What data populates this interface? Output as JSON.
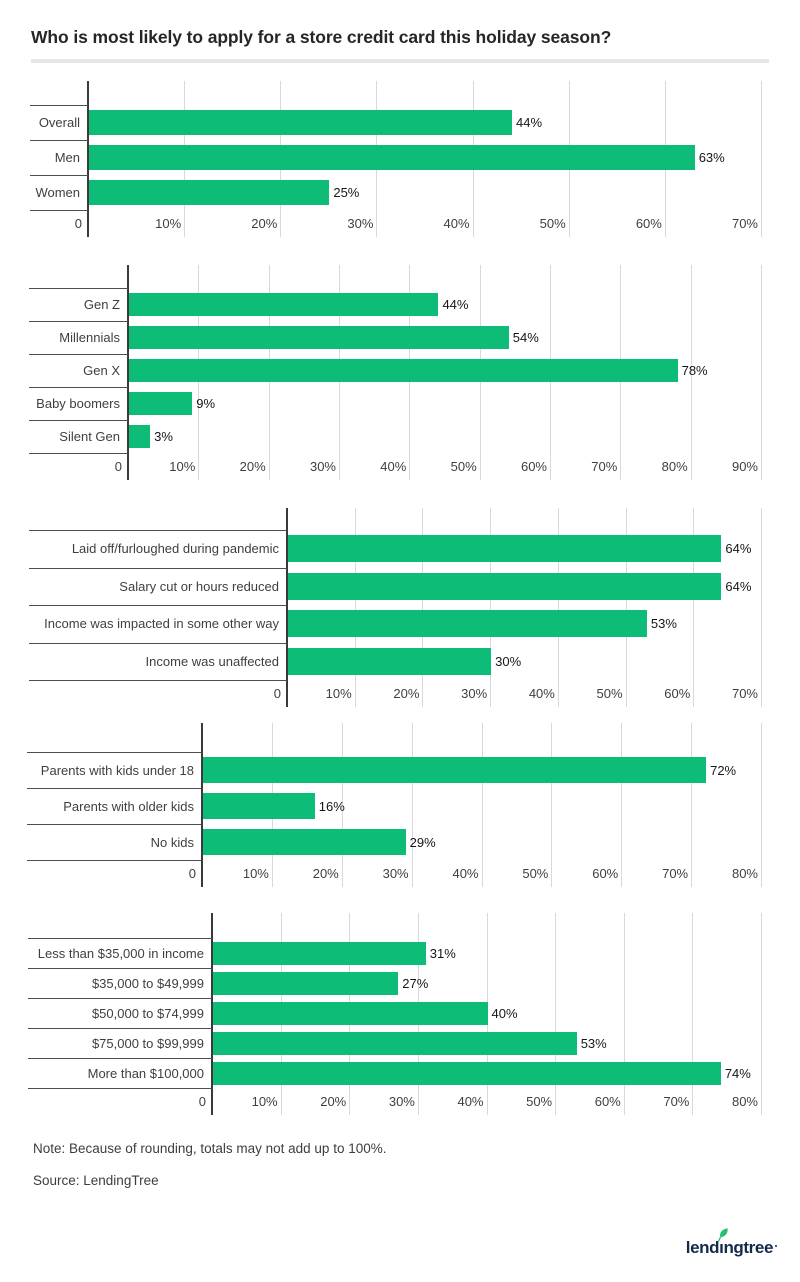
{
  "page": {
    "title": "Who is most likely to apply for a store credit card this holiday season?",
    "note": "Note: Because of rounding, totals may not add up to 100%.",
    "source": "Source: LendingTree",
    "logo": {
      "alt": "lendingtree",
      "pre": "lend",
      "i": "ı",
      "post": "ngtree"
    }
  },
  "colors": {
    "bar": "#0dbc77",
    "grid": "#d9d9d9",
    "axis": "#3a3a3a",
    "rowline": "#4f4f4f",
    "text": "#3f3f3f",
    "value": "#161616",
    "title": "#262626",
    "divider": "#e6e6e6",
    "navy": "#15294b",
    "leaf": "#25c16f"
  },
  "chart_data": [
    {
      "type": "bar",
      "id": "by-gender",
      "categories": [
        "Overall",
        "Men",
        "Women"
      ],
      "values": [
        44,
        63,
        25
      ],
      "value_labels": [
        "44%",
        "63%",
        "25%"
      ],
      "ticks": [
        "0",
        "10%",
        "20%",
        "30%",
        "40%",
        "50%",
        "60%",
        "70%"
      ],
      "xlim": [
        0,
        70
      ],
      "unit": "%",
      "grid": true,
      "orientation": "horizontal"
    },
    {
      "type": "bar",
      "id": "by-generation",
      "categories": [
        "Gen Z",
        "Millennials",
        "Gen X",
        "Baby boomers",
        "Silent Gen"
      ],
      "values": [
        44,
        54,
        78,
        9,
        3
      ],
      "value_labels": [
        "44%",
        "54%",
        "78%",
        "9%",
        "3%"
      ],
      "ticks": [
        "0",
        "10%",
        "20%",
        "30%",
        "40%",
        "50%",
        "60%",
        "70%",
        "80%",
        "90%"
      ],
      "xlim": [
        0,
        90
      ],
      "unit": "%",
      "grid": true,
      "orientation": "horizontal"
    },
    {
      "type": "bar",
      "id": "by-income-impact",
      "categories": [
        "Laid off/furloughed during pandemic",
        "Salary cut or hours reduced",
        "Income was impacted in some other way",
        "Income was unaffected"
      ],
      "values": [
        64,
        64,
        53,
        30
      ],
      "value_labels": [
        "64%",
        "64%",
        "53%",
        "30%"
      ],
      "ticks": [
        "0",
        "10%",
        "20%",
        "30%",
        "40%",
        "50%",
        "60%",
        "70%"
      ],
      "xlim": [
        0,
        70
      ],
      "unit": "%",
      "grid": true,
      "orientation": "horizontal"
    },
    {
      "type": "bar",
      "id": "by-parental-status",
      "categories": [
        "Parents with kids under 18",
        "Parents with older kids",
        "No kids"
      ],
      "values": [
        72,
        16,
        29
      ],
      "value_labels": [
        "72%",
        "16%",
        "29%"
      ],
      "ticks": [
        "0",
        "10%",
        "20%",
        "30%",
        "40%",
        "50%",
        "60%",
        "70%",
        "80%"
      ],
      "xlim": [
        0,
        80
      ],
      "unit": "%",
      "grid": true,
      "orientation": "horizontal"
    },
    {
      "type": "bar",
      "id": "by-income-level",
      "categories": [
        "Less than $35,000 in income",
        "$35,000 to $49,999",
        "$50,000 to $74,999",
        "$75,000 to $99,999",
        "More than $100,000"
      ],
      "values": [
        31,
        27,
        40,
        53,
        74
      ],
      "value_labels": [
        "31%",
        "27%",
        "40%",
        "53%",
        "74%"
      ],
      "ticks": [
        "0",
        "10%",
        "20%",
        "30%",
        "40%",
        "50%",
        "60%",
        "70%",
        "80%"
      ],
      "xlim": [
        0,
        80
      ],
      "unit": "%",
      "grid": true,
      "orientation": "horizontal"
    }
  ]
}
